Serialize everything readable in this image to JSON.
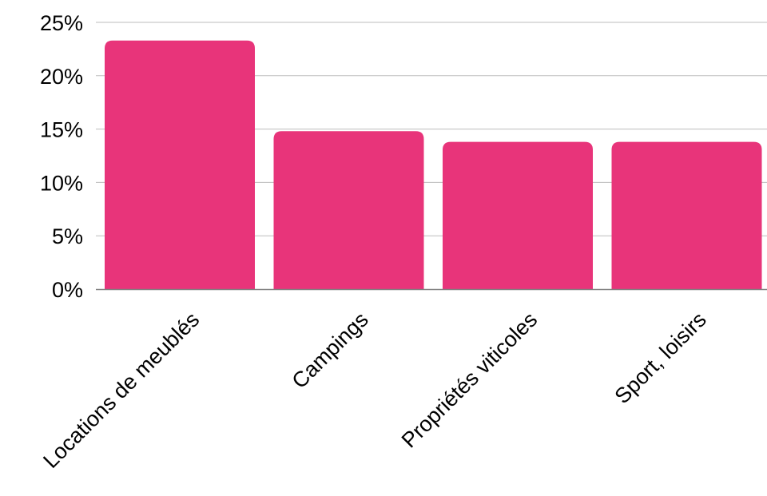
{
  "chart_data": {
    "type": "bar",
    "categories": [
      "Locations de meublés",
      "Campings",
      "Propriétés viticoles",
      "Sport, loisirs"
    ],
    "values": [
      23.3,
      14.8,
      13.8,
      13.8
    ],
    "ylim": [
      0,
      25
    ],
    "yticks": [
      "0%",
      "5%",
      "10%",
      "15%",
      "20%",
      "25%"
    ],
    "ytick_values": [
      0,
      5,
      10,
      15,
      20,
      25
    ],
    "grid": true,
    "legend": "none",
    "colors": {
      "bar": "#E8347A",
      "grid": "#BDBDBD",
      "axis": "#808080"
    }
  }
}
